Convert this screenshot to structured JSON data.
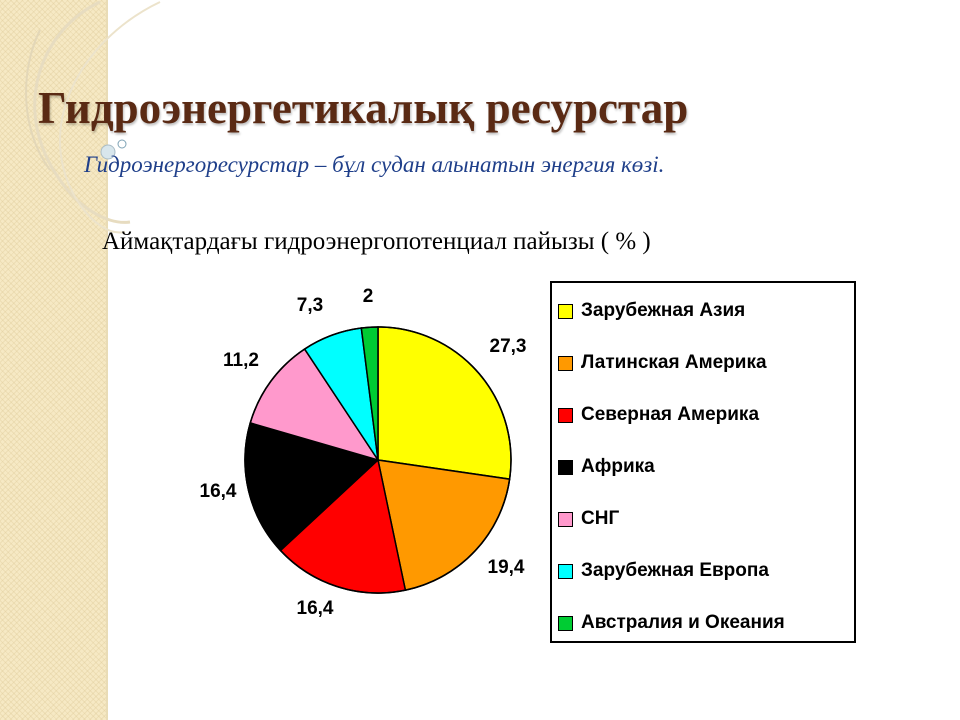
{
  "slide": {
    "title": "Гидроэнергетикалық ресурстар",
    "subtitle": "Гидроэнергоресурстар – бұл судан алынатын энергия көзі.",
    "chart_heading": "Аймақтардағы гидроэнергопотенциал пайызы  ( % )"
  },
  "colors": {
    "title": "#5a2a14",
    "subtitle": "#1f3f8a",
    "strip": "#f6e9c4"
  },
  "chart_data": {
    "type": "pie",
    "categories": [
      "Зарубежная Азия",
      "Латинская Америка",
      "Северная Америка",
      "Африка",
      "СНГ",
      "Зарубежная Европа",
      "Австралия и Океания"
    ],
    "values": [
      27.3,
      19.4,
      16.4,
      16.4,
      11.2,
      7.3,
      2
    ],
    "value_labels": [
      "27,3",
      "19,4",
      "16,4",
      "16,4",
      "11,2",
      "7,3",
      "2"
    ],
    "colors": [
      "#ffff00",
      "#ff9900",
      "#ff0000",
      "#000000",
      "#ff99cc",
      "#00ffff",
      "#00cc33"
    ],
    "legend": "right"
  }
}
